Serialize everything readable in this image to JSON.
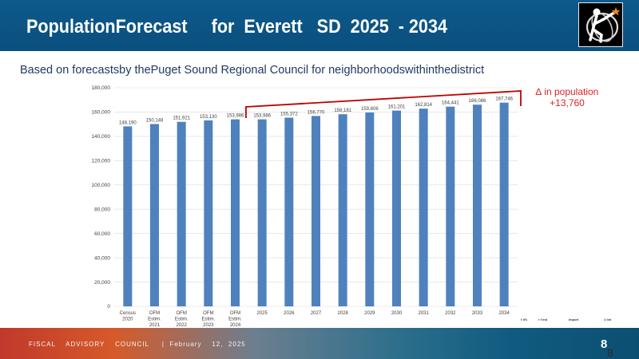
{
  "header": {
    "title": "PopulationForecast     for  Everett   SD  2025  - 2034"
  },
  "subtitle": "Based on forecastsby thePuget Sound Regional Council for neighborhoodswithinthedistrict",
  "chart_data": {
    "type": "bar",
    "categories": [
      [
        "Census",
        "2020"
      ],
      [
        "OFM",
        "Estim.",
        "2021"
      ],
      [
        "OFM",
        "Estim.",
        "2022"
      ],
      [
        "OFM",
        "Estim.",
        "2023"
      ],
      [
        "OFM",
        "Estim.",
        "2024"
      ],
      [
        "2025"
      ],
      [
        "2026"
      ],
      [
        "2027"
      ],
      [
        "2028"
      ],
      [
        "2029"
      ],
      [
        "2030"
      ],
      [
        "2031"
      ],
      [
        "2032"
      ],
      [
        "2033"
      ],
      [
        "2034"
      ]
    ],
    "values": [
      148190,
      150148,
      151921,
      153130,
      153986,
      153986,
      155372,
      156770,
      158181,
      159606,
      161201,
      162814,
      164441,
      166086,
      167746
    ],
    "value_labels": [
      "148,190",
      "150,148",
      "151,921",
      "153,130",
      "153,986",
      "153,986",
      "155,372",
      "156,770",
      "158,181",
      "159,606",
      "161,201",
      "162,814",
      "164,441",
      "166,086",
      "167,746"
    ],
    "ylim": [
      0,
      180000
    ],
    "yticks": [
      0,
      20000,
      40000,
      60000,
      80000,
      100000,
      120000,
      140000,
      160000,
      180000
    ],
    "ytick_labels": [
      "0",
      "20,000",
      "40,000",
      "60,000",
      "80,000",
      "100,000",
      "120,000",
      "140,000",
      "160,000",
      "180,000"
    ],
    "bar_color": "#4f81bd",
    "bracket_color": "#c00000",
    "annotation": {
      "line1": "∆ in population",
      "line2": "+13,760"
    },
    "gridlines": true
  },
  "stray_marks": [
    "f 4%",
    "r f   lnd",
    "lmport",
    "1 lnh"
  ],
  "footer": {
    "text": "FISCAL    ADVISORY    COUNCIL     |  February    12,  2025",
    "page": "8",
    "page_shadow": "8"
  },
  "colors": {
    "header_bg": "#0d5a8c",
    "subtitle": "#1f3a66",
    "annotation": "#d92525"
  }
}
